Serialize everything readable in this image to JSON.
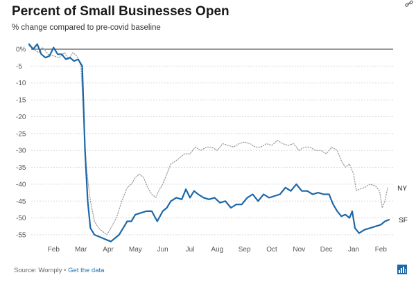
{
  "header": {
    "title": "Percent of Small Businesses Open",
    "subtitle": "% change compared to pre-covid baseline"
  },
  "footer": {
    "source": "Source: Womply",
    "separator": "•",
    "link": "Get the data"
  },
  "icons": [
    "link-icon",
    "datawrapper-logo-icon"
  ],
  "chart_data": {
    "type": "line",
    "title": "Percent of Small Businesses Open",
    "subtitle": "% change compared to pre-covid baseline",
    "xlabel": "",
    "ylabel": "",
    "ylim": [
      -57,
      2
    ],
    "xlim": [
      0,
      13.4
    ],
    "x_ticks": [
      {
        "pos": 1,
        "label": "Feb"
      },
      {
        "pos": 2,
        "label": "Mar"
      },
      {
        "pos": 3,
        "label": "Apr"
      },
      {
        "pos": 4,
        "label": "May"
      },
      {
        "pos": 5,
        "label": "Jun"
      },
      {
        "pos": 6,
        "label": "Jul"
      },
      {
        "pos": 7,
        "label": "Aug"
      },
      {
        "pos": 8,
        "label": "Sep"
      },
      {
        "pos": 9,
        "label": "Oct"
      },
      {
        "pos": 10,
        "label": "Nov"
      },
      {
        "pos": 11,
        "label": "Dec"
      },
      {
        "pos": 12,
        "label": "Jan"
      },
      {
        "pos": 13,
        "label": "Feb"
      }
    ],
    "y_ticks": [
      {
        "value": 0,
        "label": "0%"
      },
      {
        "value": -5,
        "label": "-5"
      },
      {
        "value": -10,
        "label": "-10"
      },
      {
        "value": -15,
        "label": "-15"
      },
      {
        "value": -20,
        "label": "-20"
      },
      {
        "value": -25,
        "label": "-25"
      },
      {
        "value": -30,
        "label": "-30"
      },
      {
        "value": -35,
        "label": "-35"
      },
      {
        "value": -40,
        "label": "-40"
      },
      {
        "value": -45,
        "label": "-45"
      },
      {
        "value": -50,
        "label": "-50"
      },
      {
        "value": -55,
        "label": "-55"
      }
    ],
    "grid": true,
    "series": [
      {
        "name": "NY",
        "color": "#9a9a9a",
        "style": "dotted",
        "x": [
          0.1,
          0.25,
          0.45,
          0.6,
          0.8,
          1.0,
          1.2,
          1.4,
          1.55,
          1.7,
          1.85,
          2.0,
          2.1,
          2.2,
          2.35,
          2.5,
          2.65,
          2.8,
          2.95,
          3.1,
          3.3,
          3.5,
          3.7,
          3.85,
          4.0,
          4.15,
          4.3,
          4.45,
          4.6,
          4.75,
          4.85,
          5.0,
          5.15,
          5.3,
          5.5,
          5.65,
          5.8,
          6.0,
          6.2,
          6.4,
          6.6,
          6.8,
          7.0,
          7.2,
          7.4,
          7.6,
          7.8,
          8.0,
          8.2,
          8.4,
          8.6,
          8.8,
          9.0,
          9.2,
          9.4,
          9.6,
          9.8,
          10.0,
          10.2,
          10.4,
          10.6,
          10.8,
          11.0,
          11.2,
          11.4,
          11.55,
          11.7,
          11.85,
          12.0,
          12.1,
          12.2,
          12.4,
          12.6,
          12.8,
          12.95,
          13.05,
          13.15,
          13.25
        ],
        "values": [
          1,
          0,
          -1,
          0.5,
          -1.5,
          -2,
          -2.5,
          -1,
          -3,
          -1,
          -2,
          -5,
          -20,
          -35,
          -45,
          -51,
          -53,
          -54,
          -55,
          -53,
          -50,
          -45,
          -41,
          -40,
          -38,
          -37,
          -38,
          -41,
          -43,
          -44,
          -42,
          -40,
          -37,
          -34,
          -33,
          -32,
          -31,
          -31,
          -29,
          -30,
          -29,
          -29,
          -30,
          -28,
          -28.5,
          -29,
          -28,
          -27.5,
          -28,
          -29,
          -29,
          -28,
          -28.5,
          -27,
          -28,
          -28.5,
          -28,
          -30,
          -29,
          -29,
          -30,
          -30,
          -31,
          -29,
          -30,
          -33,
          -35,
          -34,
          -37,
          -42,
          -41.5,
          -41,
          -40,
          -40.5,
          -42,
          -47,
          -45,
          -41
        ]
      },
      {
        "name": "SF",
        "color": "#1d67a8",
        "style": "solid",
        "x": [
          0.1,
          0.25,
          0.4,
          0.55,
          0.7,
          0.85,
          1.0,
          1.15,
          1.3,
          1.45,
          1.6,
          1.75,
          1.9,
          2.05,
          2.15,
          2.25,
          2.35,
          2.5,
          2.65,
          2.8,
          2.95,
          3.1,
          3.25,
          3.4,
          3.55,
          3.7,
          3.85,
          4.0,
          4.2,
          4.4,
          4.6,
          4.8,
          5.0,
          5.15,
          5.3,
          5.5,
          5.7,
          5.85,
          6.0,
          6.15,
          6.3,
          6.5,
          6.7,
          6.9,
          7.1,
          7.3,
          7.5,
          7.7,
          7.9,
          8.1,
          8.3,
          8.5,
          8.7,
          8.9,
          9.1,
          9.3,
          9.5,
          9.7,
          9.9,
          10.1,
          10.3,
          10.5,
          10.7,
          10.9,
          11.1,
          11.25,
          11.4,
          11.55,
          11.7,
          11.85,
          11.95,
          12.05,
          12.2,
          12.4,
          12.6,
          12.8,
          13.0,
          13.15,
          13.3
        ],
        "values": [
          1.5,
          0,
          1.5,
          -1.5,
          -2.5,
          -2,
          0.5,
          -1.5,
          -1.5,
          -3,
          -2.5,
          -3.5,
          -3,
          -5,
          -30,
          -45,
          -53,
          -55,
          -55.5,
          -56,
          -56.5,
          -57,
          -56,
          -55,
          -53,
          -51,
          -51,
          -49,
          -48.5,
          -48,
          -48,
          -51,
          -48,
          -47,
          -45,
          -44,
          -44.5,
          -41.5,
          -44,
          -42,
          -43,
          -44,
          -44.5,
          -44,
          -45.5,
          -45,
          -47,
          -46,
          -46,
          -44,
          -43,
          -45,
          -43,
          -44,
          -43.5,
          -43,
          -41,
          -42,
          -40,
          -42,
          -42,
          -43,
          -42.5,
          -43,
          -43,
          -46,
          -48,
          -49.5,
          -49,
          -50,
          -48,
          -53,
          -54.5,
          -53.5,
          -53,
          -52.5,
          -52,
          -51,
          -50.5
        ]
      }
    ],
    "annotations": [
      {
        "series": "NY",
        "label": "NY",
        "value": -41
      },
      {
        "series": "SF",
        "label": "SF",
        "value": -50.5
      }
    ]
  }
}
